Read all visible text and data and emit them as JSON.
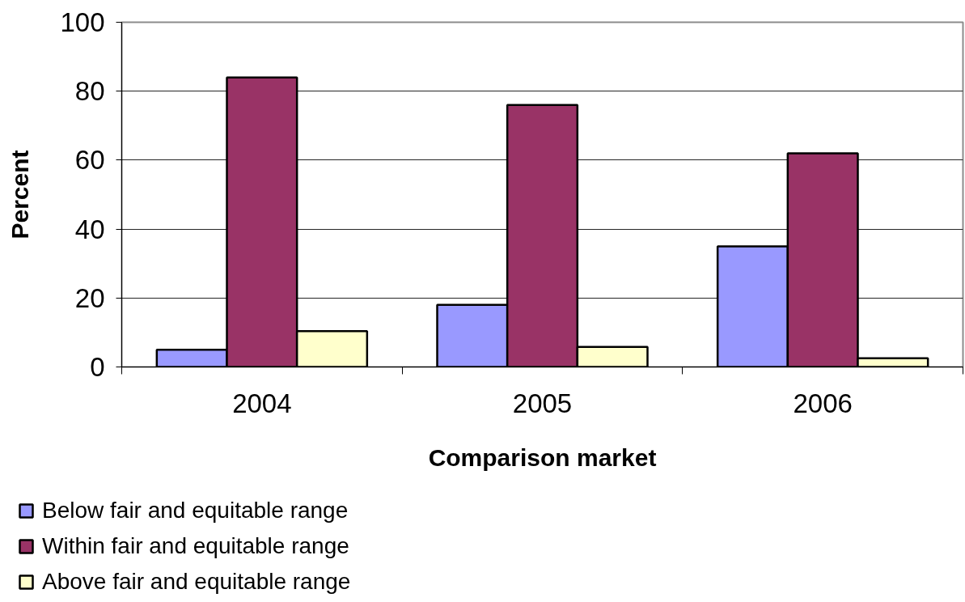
{
  "chart_data": {
    "type": "bar",
    "xlabel": "Comparison market",
    "ylabel": "Percent",
    "categories": [
      "2004",
      "2005",
      "2006"
    ],
    "series": [
      {
        "name": "Below fair and equitable range",
        "color": "#9999ff",
        "values": [
          5,
          18,
          35
        ]
      },
      {
        "name": "Within fair and equitable range",
        "color": "#993366",
        "values": [
          84,
          76,
          62
        ]
      },
      {
        "name": "Above fair and equitable range",
        "color": "#ffffcc",
        "values": [
          10.4,
          5.8,
          2.5
        ]
      }
    ],
    "ylim": [
      0,
      100
    ],
    "yticks": [
      0,
      20,
      40,
      60,
      80,
      100
    ],
    "grid": "y",
    "legend": "bottom left"
  }
}
